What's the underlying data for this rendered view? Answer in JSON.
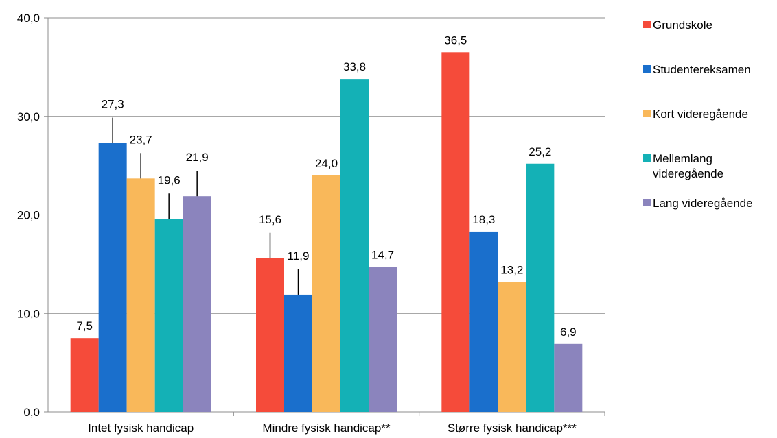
{
  "chart_data": {
    "type": "bar",
    "categories": [
      "Intet fysisk handicap",
      "Mindre fysisk handicap**",
      "Større fysisk handicap***"
    ],
    "series": [
      {
        "name": "Grundskole",
        "values": [
          7.5,
          15.6,
          36.5
        ],
        "labels": [
          "7,5",
          "15,6",
          "36,5"
        ],
        "color": "#F54B3A",
        "errorbar": [
          false,
          true,
          false
        ]
      },
      {
        "name": "Studentereksamen",
        "values": [
          27.3,
          11.9,
          18.3
        ],
        "labels": [
          "27,3",
          "11,9",
          "18,3"
        ],
        "color": "#1A6FCC",
        "errorbar": [
          true,
          true,
          false
        ]
      },
      {
        "name": "Kort videregående",
        "values": [
          23.7,
          24.0,
          13.2
        ],
        "labels": [
          "23,7",
          "24,0",
          "13,2"
        ],
        "color": "#F9B85A",
        "errorbar": [
          true,
          false,
          false
        ]
      },
      {
        "name": "Mellemlang videregående",
        "legend_lines": [
          "Mellemlang",
          "videregående"
        ],
        "values": [
          19.6,
          33.8,
          25.2
        ],
        "labels": [
          "19,6",
          "33,8",
          "25,2"
        ],
        "color": "#14B1B6",
        "errorbar": [
          true,
          false,
          false
        ]
      },
      {
        "name": "Lang videregående",
        "values": [
          21.9,
          14.7,
          6.9
        ],
        "labels": [
          "21,9",
          "14,7",
          "6,9"
        ],
        "color": "#8B84BD",
        "errorbar": [
          true,
          false,
          false
        ]
      }
    ],
    "yticks": [
      "0,0",
      "10,0",
      "20,0",
      "30,0",
      "40,0"
    ],
    "ylim": [
      0,
      40
    ],
    "grid": true,
    "legend_position": "right"
  }
}
